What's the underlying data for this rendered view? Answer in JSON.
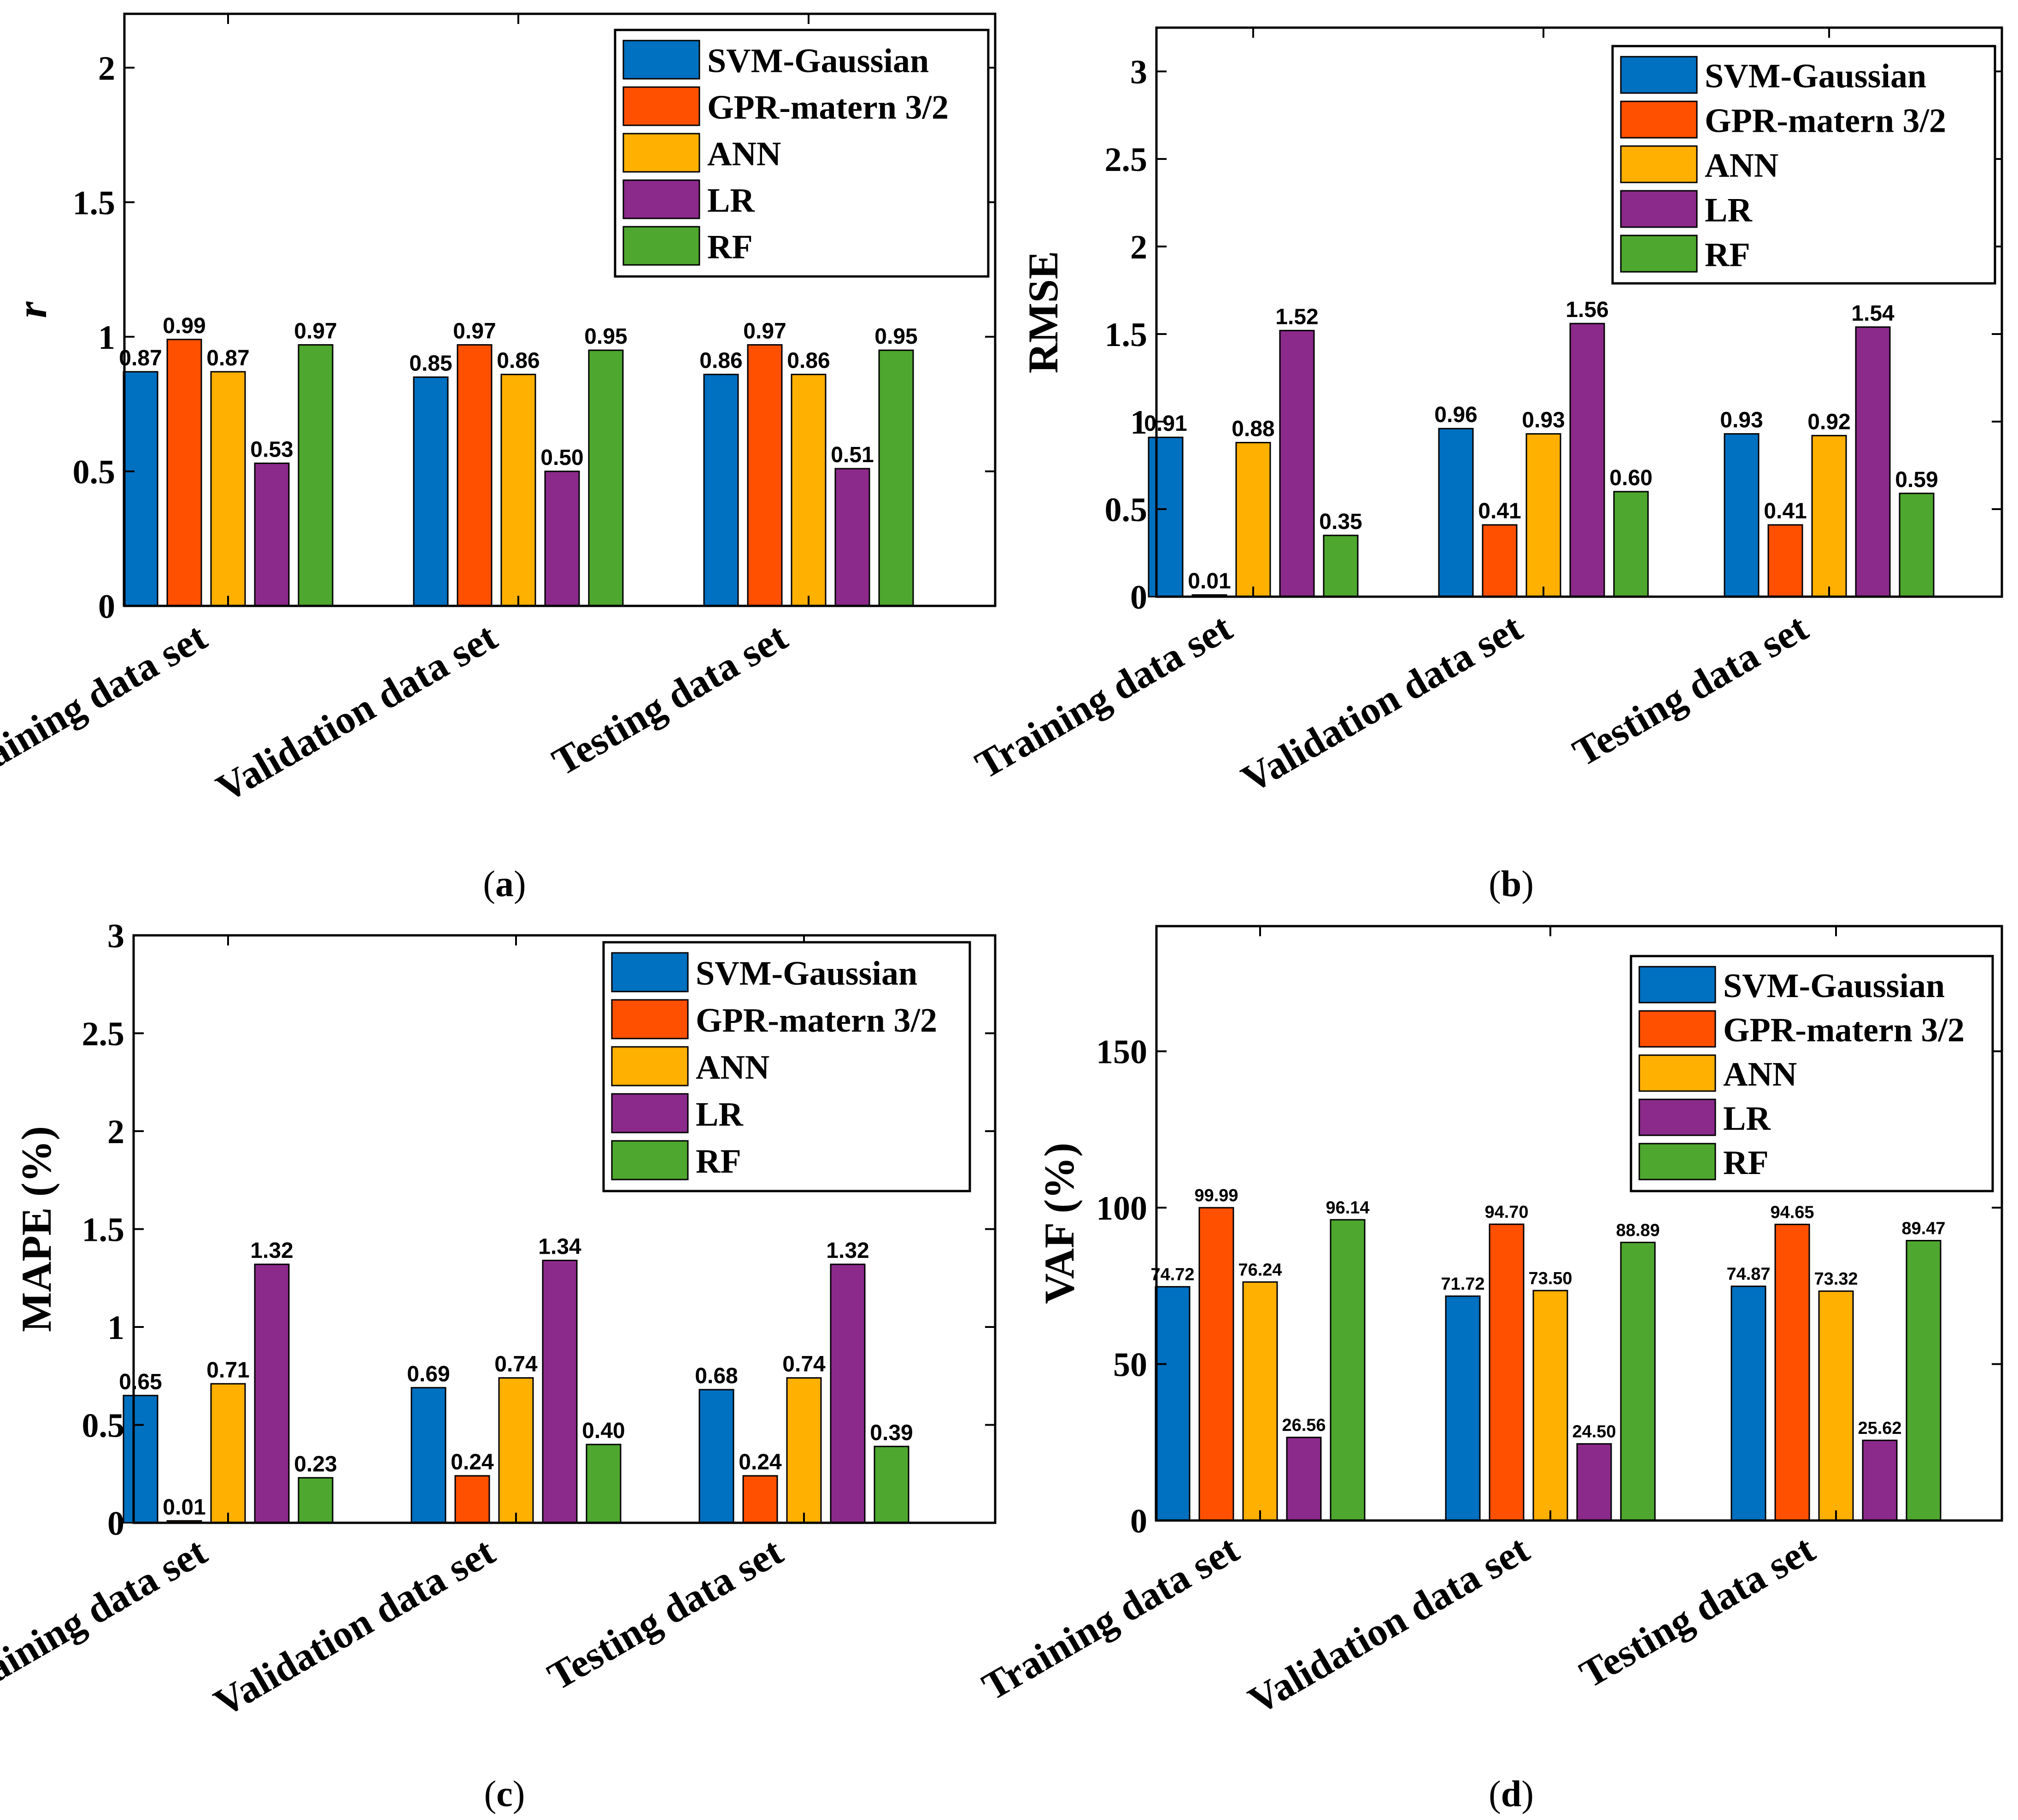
{
  "colors": {
    "SVM-Gaussian": "#0070C0",
    "GPR-matern 3/2": "#FF5000",
    "ANN": "#FFB000",
    "LR": "#8B2A8B",
    "RF": "#4EA72E"
  },
  "legend": [
    "SVM-Gaussian",
    "GPR-matern 3/2",
    "ANN",
    "LR",
    "RF"
  ],
  "chart_data": [
    {
      "id": "a",
      "type": "bar",
      "panel_label": "a",
      "ylabel": "r",
      "ylabel_italic": true,
      "ylim": [
        0,
        2.2
      ],
      "yticks": [
        "0",
        "0.5",
        "1",
        "1.5",
        "2"
      ],
      "ytick_values": [
        0,
        0.5,
        1,
        1.5,
        2
      ],
      "categories": [
        "Training data set",
        "Validation data set",
        "Testing data set"
      ],
      "series": [
        {
          "name": "SVM-Gaussian",
          "values": [
            0.87,
            0.85,
            0.86
          ],
          "labels": [
            "0.87",
            "0.85",
            "0.86"
          ]
        },
        {
          "name": "GPR-matern 3/2",
          "values": [
            0.99,
            0.97,
            0.97
          ],
          "labels": [
            "0.99",
            "0.97",
            "0.97"
          ]
        },
        {
          "name": "ANN",
          "values": [
            0.87,
            0.86,
            0.86
          ],
          "labels": [
            "0.87",
            "0.86",
            "0.86"
          ]
        },
        {
          "name": "LR",
          "values": [
            0.53,
            0.5,
            0.51
          ],
          "labels": [
            "0.53",
            "0.50",
            "0.51"
          ]
        },
        {
          "name": "RF",
          "values": [
            0.97,
            0.95,
            0.95
          ],
          "labels": [
            "0.97",
            "0.95",
            "0.95"
          ]
        }
      ]
    },
    {
      "id": "b",
      "type": "bar",
      "panel_label": "b",
      "ylabel": "RMSE",
      "ylabel_italic": false,
      "ylim": [
        0,
        3.25
      ],
      "yticks": [
        "0",
        "0.5",
        "1",
        "1.5",
        "2",
        "2.5",
        "3"
      ],
      "ytick_values": [
        0,
        0.5,
        1,
        1.5,
        2,
        2.5,
        3
      ],
      "categories": [
        "Training data set",
        "Validation data set",
        "Testing data set"
      ],
      "series": [
        {
          "name": "SVM-Gaussian",
          "values": [
            0.91,
            0.96,
            0.93
          ],
          "labels": [
            "0.91",
            "0.96",
            "0.93"
          ]
        },
        {
          "name": "GPR-matern 3/2",
          "values": [
            0.01,
            0.41,
            0.41
          ],
          "labels": [
            "0.01",
            "0.41",
            "0.41"
          ]
        },
        {
          "name": "ANN",
          "values": [
            0.88,
            0.93,
            0.92
          ],
          "labels": [
            "0.88",
            "0.93",
            "0.92"
          ]
        },
        {
          "name": "LR",
          "values": [
            1.52,
            1.56,
            1.54
          ],
          "labels": [
            "1.52",
            "1.56",
            "1.54"
          ]
        },
        {
          "name": "RF",
          "values": [
            0.35,
            0.6,
            0.59
          ],
          "labels": [
            "0.35",
            "0.60",
            "0.59"
          ]
        }
      ]
    },
    {
      "id": "c",
      "type": "bar",
      "panel_label": "c",
      "ylabel": "MAPE (%)",
      "ylabel_italic": false,
      "ylim": [
        0,
        3
      ],
      "yticks": [
        "0",
        "0.5",
        "1",
        "1.5",
        "2",
        "2.5",
        "3"
      ],
      "ytick_values": [
        0,
        0.5,
        1,
        1.5,
        2,
        2.5,
        3
      ],
      "categories": [
        "Training data set",
        "Validation data set",
        "Testing data set"
      ],
      "series": [
        {
          "name": "SVM-Gaussian",
          "values": [
            0.65,
            0.69,
            0.68
          ],
          "labels": [
            "0.65",
            "0.69",
            "0.68"
          ]
        },
        {
          "name": "GPR-matern 3/2",
          "values": [
            0.01,
            0.24,
            0.24
          ],
          "labels": [
            "0.01",
            "0.24",
            "0.24"
          ]
        },
        {
          "name": "ANN",
          "values": [
            0.71,
            0.74,
            0.74
          ],
          "labels": [
            "0.71",
            "0.74",
            "0.74"
          ]
        },
        {
          "name": "LR",
          "values": [
            1.32,
            1.34,
            1.32
          ],
          "labels": [
            "1.32",
            "1.34",
            "1.32"
          ]
        },
        {
          "name": "RF",
          "values": [
            0.23,
            0.4,
            0.39
          ],
          "labels": [
            "0.23",
            "0.40",
            "0.39"
          ]
        }
      ]
    },
    {
      "id": "d",
      "type": "bar",
      "panel_label": "d",
      "ylabel": "VAF (%)",
      "ylabel_italic": false,
      "ylim": [
        0,
        190
      ],
      "yticks": [
        "0",
        "50",
        "100",
        "150"
      ],
      "ytick_values": [
        0,
        50,
        100,
        150
      ],
      "categories": [
        "Training data set",
        "Validation data set",
        "Testing data set"
      ],
      "series": [
        {
          "name": "SVM-Gaussian",
          "values": [
            74.72,
            71.72,
            74.87
          ],
          "labels": [
            "74.72",
            "71.72",
            "74.87"
          ]
        },
        {
          "name": "GPR-matern 3/2",
          "values": [
            99.99,
            94.7,
            94.65
          ],
          "labels": [
            "99.99",
            "94.70",
            "94.65"
          ]
        },
        {
          "name": "ANN",
          "values": [
            76.24,
            73.5,
            73.32
          ],
          "labels": [
            "76.24",
            "73.50",
            "73.32"
          ]
        },
        {
          "name": "LR",
          "values": [
            26.56,
            24.5,
            25.62
          ],
          "labels": [
            "26.56",
            "24.50",
            "25.62"
          ]
        },
        {
          "name": "RF",
          "values": [
            96.14,
            88.89,
            89.47
          ],
          "labels": [
            "96.14",
            "88.89",
            "89.47"
          ]
        }
      ]
    }
  ]
}
